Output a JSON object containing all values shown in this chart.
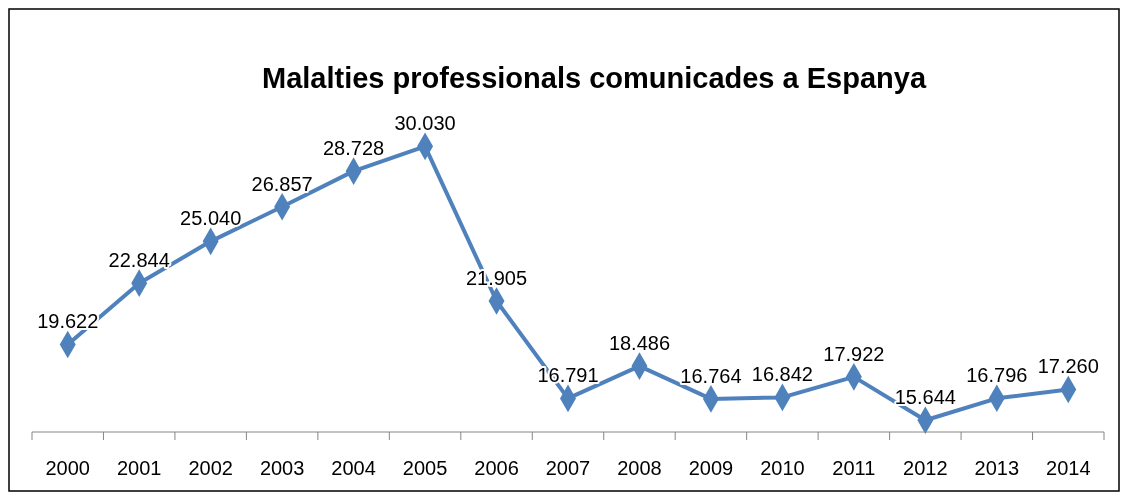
{
  "chart_data": {
    "type": "line",
    "title": "Malalties professionals comunicades a Espanya",
    "categories": [
      "2000",
      "2001",
      "2002",
      "2003",
      "2004",
      "2005",
      "2006",
      "2007",
      "2008",
      "2009",
      "2010",
      "2011",
      "2012",
      "2013",
      "2014"
    ],
    "series": [
      {
        "color": "#4f81bd",
        "values": [
          19622,
          22844,
          25040,
          26857,
          28728,
          30030,
          21905,
          16791,
          18486,
          16764,
          16842,
          17922,
          15644,
          16796,
          17260
        ],
        "value_labels": [
          "19.622",
          "22.844",
          "25.040",
          "26.857",
          "28.728",
          "30.030",
          "21.905",
          "16.791",
          "18.486",
          "16.764",
          "16.842",
          "17.922",
          "15.644",
          "16.796",
          "17.260"
        ]
      }
    ],
    "marker": "diamond",
    "line_style": "solid"
  }
}
